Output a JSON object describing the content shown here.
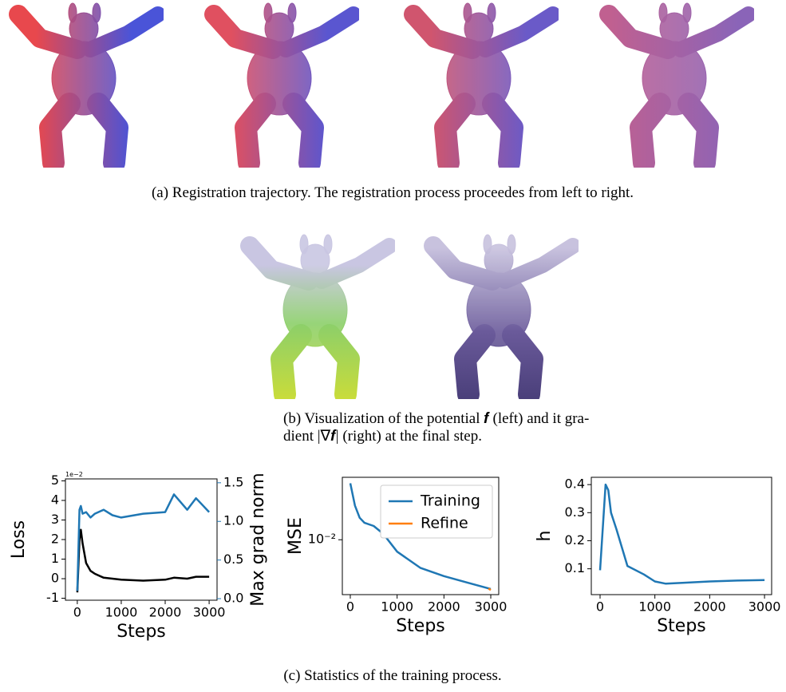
{
  "captions": {
    "a": "(a) Registration trajectory. The registration process proceedes from left to right.",
    "b": [
      "(b) Visualization of the potential 𝒇 (left) and it gra-",
      "dient |∇𝒇| (right) at the final step."
    ],
    "c": "(c) Statistics of the training process."
  },
  "chart_data": [
    {
      "type": "line",
      "xlabel": "Steps",
      "ylabel": "Loss",
      "y2label": "Max grad norm",
      "yoffset_label": "1e−2",
      "x": [
        0,
        50,
        80,
        120,
        200,
        300,
        400,
        600,
        800,
        1000,
        1500,
        2000,
        2200,
        2500,
        2700,
        3000
      ],
      "xlim": [
        -270,
        3180
      ],
      "xticks": [
        0,
        1000,
        2000,
        3000
      ],
      "ylim": [
        -1.1,
        5.1
      ],
      "yticks": [
        -1,
        0,
        1,
        2,
        3,
        4,
        5
      ],
      "y2lim": [
        -0.02,
        1.55
      ],
      "y2ticks": [
        {
          "value": 0,
          "label": "0.0"
        },
        0.5,
        {
          "value": 1,
          "label": "1.0"
        },
        1.5
      ],
      "series": [
        {
          "name": "Loss",
          "color": "#000000",
          "values": [
            -0.7,
            2.0,
            2.5,
            1.8,
            0.8,
            0.4,
            0.25,
            0.05,
            0.0,
            -0.05,
            -0.1,
            -0.05,
            0.05,
            0.0,
            0.1,
            0.1
          ]
        },
        {
          "name": "Max grad norm",
          "color": "#1f77b4",
          "axis": "y2",
          "values": [
            0.1,
            1.15,
            1.2,
            1.1,
            1.12,
            1.05,
            1.1,
            1.15,
            1.08,
            1.05,
            1.1,
            1.12,
            1.35,
            1.15,
            1.3,
            1.12
          ]
        }
      ]
    },
    {
      "type": "line",
      "xlabel": "Steps",
      "ylabel": "MSE",
      "log_y": true,
      "legend": "upper right",
      "x": [
        0,
        100,
        200,
        300,
        500,
        700,
        1000,
        1500,
        2000,
        2500,
        3000
      ],
      "xlim": [
        -170,
        3170
      ],
      "xticks": [
        0,
        1000,
        2000,
        3000
      ],
      "ylim": [
        0.005,
        0.022
      ],
      "yticks": [
        {
          "value": 0.01,
          "label": "10⁻²"
        }
      ],
      "series": [
        {
          "name": "Training",
          "color": "#1f77b4",
          "values": [
            0.0204,
            0.0154,
            0.0132,
            0.0124,
            0.0119,
            0.0108,
            0.0086,
            0.007,
            0.00632,
            0.00582,
            0.00537
          ]
        },
        {
          "name": "Refine",
          "color": "#ff7f0e",
          "x": [
            2950,
            3000
          ],
          "values": [
            0.0054,
            0.0053
          ]
        }
      ]
    },
    {
      "type": "line",
      "xlabel": "Steps",
      "ylabel": "h",
      "x": [
        0,
        100,
        150,
        200,
        300,
        500,
        800,
        1000,
        1200,
        1500,
        2000,
        2500,
        3000
      ],
      "xlim": [
        -160,
        3130
      ],
      "xticks": [
        0,
        1000,
        2000,
        3000
      ],
      "ylim": [
        0.008,
        0.426
      ],
      "yticks": [
        0.1,
        0.2,
        0.3,
        0.4
      ],
      "series": [
        {
          "name": "h",
          "color": "#1f77b4",
          "values": [
            0.095,
            0.4,
            0.38,
            0.3,
            0.24,
            0.11,
            0.08,
            0.055,
            0.047,
            0.05,
            0.055,
            0.058,
            0.06
          ]
        }
      ]
    }
  ]
}
